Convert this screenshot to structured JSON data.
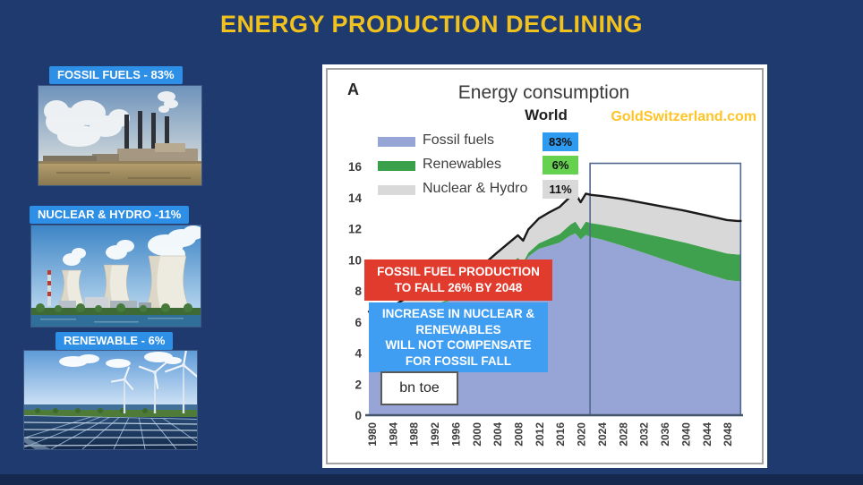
{
  "slide": {
    "title": "ENERGY PRODUCTION DECLINING"
  },
  "colors": {
    "slide_bg": "#1e3a6e",
    "title_yellow": "#f1c21e",
    "label_blue": "#2e8fe6",
    "red_box": "#e13b2d",
    "blue_box": "#3f9ef2",
    "watermark_gold": "#ffc425"
  },
  "left_panel": {
    "items": [
      {
        "label": "FOSSIL FUELS - 83%",
        "image": "fossil-power-plant"
      },
      {
        "label": "NUCLEAR & HYDRO -11%",
        "image": "nuclear-cooling-towers"
      },
      {
        "label": "RENEWABLE - 6%",
        "image": "solar-panels-wind-turbines"
      }
    ]
  },
  "chart": {
    "panel_letter": "A",
    "title": "Energy consumption",
    "subtitle": "World",
    "watermark": "GoldSwitzerland.com",
    "unit_label": "bn toe",
    "legend": [
      {
        "label": "Fossil fuels",
        "badge": "83%",
        "swatch_color": "#96a5d6",
        "badge_color": "#2e9bf0"
      },
      {
        "label": "Renewables",
        "badge": "6%",
        "swatch_color": "#3aa04a",
        "badge_color": "#66d14e"
      },
      {
        "label": "Nuclear & Hydro",
        "badge": "11%",
        "swatch_color": "#d9d9d9",
        "badge_color": "#d9d9d9"
      }
    ],
    "annotations": {
      "red_box_lines": [
        "FOSSIL FUEL PRODUCTION",
        "TO FALL 26% BY 2048"
      ],
      "blue_box_lines": [
        "INCREASE IN NUCLEAR &",
        "RENEWABLES",
        "WILL NOT COMPENSATE",
        "FOR FOSSIL FALL"
      ]
    }
  },
  "chart_data": {
    "type": "area",
    "stacked": true,
    "title": "Energy consumption",
    "subtitle": "World",
    "unit": "bn toe",
    "grid": false,
    "legend_position": "top-left",
    "ylim": [
      0,
      16
    ],
    "yticks": [
      0,
      2,
      4,
      6,
      8,
      10,
      12,
      14,
      16
    ],
    "xticks": [
      1980,
      1984,
      1988,
      1992,
      1996,
      2000,
      2004,
      2008,
      2012,
      2016,
      2020,
      2024,
      2028,
      2032,
      2036,
      2040,
      2044,
      2048
    ],
    "x": [
      1980,
      1984,
      1988,
      1992,
      1996,
      2000,
      2004,
      2008,
      2009,
      2010,
      2012,
      2014,
      2016,
      2018,
      2019,
      2020,
      2021,
      2022,
      2024,
      2028,
      2032,
      2036,
      2040,
      2044,
      2048,
      2050
    ],
    "series": [
      {
        "name": "Fossil fuels",
        "color": "#96a5d6",
        "share_label": "83%",
        "values": [
          6.0,
          6.2,
          6.8,
          7.0,
          7.5,
          8.0,
          9.0,
          9.9,
          9.6,
          10.2,
          10.7,
          10.9,
          11.1,
          11.55,
          11.7,
          11.3,
          11.6,
          11.45,
          11.3,
          10.9,
          10.45,
          10.0,
          9.55,
          9.1,
          8.7,
          8.62
        ]
      },
      {
        "name": "Renewables",
        "color": "#3fa04e",
        "share_label": "6%",
        "values": [
          0.06,
          0.07,
          0.08,
          0.09,
          0.1,
          0.12,
          0.15,
          0.22,
          0.23,
          0.25,
          0.35,
          0.45,
          0.55,
          0.7,
          0.75,
          0.65,
          0.85,
          0.9,
          0.95,
          1.1,
          1.25,
          1.4,
          1.55,
          1.65,
          1.7,
          1.72
        ]
      },
      {
        "name": "Nuclear & Hydro",
        "color": "#d8d8d8",
        "share_label": "11%",
        "values": [
          0.6,
          0.75,
          0.9,
          1.0,
          1.05,
          1.15,
          1.3,
          1.45,
          1.4,
          1.5,
          1.6,
          1.7,
          1.75,
          1.8,
          1.8,
          1.75,
          1.8,
          1.82,
          1.85,
          1.9,
          1.95,
          2.0,
          2.05,
          2.1,
          2.15,
          2.15
        ]
      }
    ],
    "total_line_color": "#1a1a1a",
    "forecast_box": {
      "x_start": 2021.8,
      "x_end": 2050.6,
      "y_top": 16.2
    }
  }
}
